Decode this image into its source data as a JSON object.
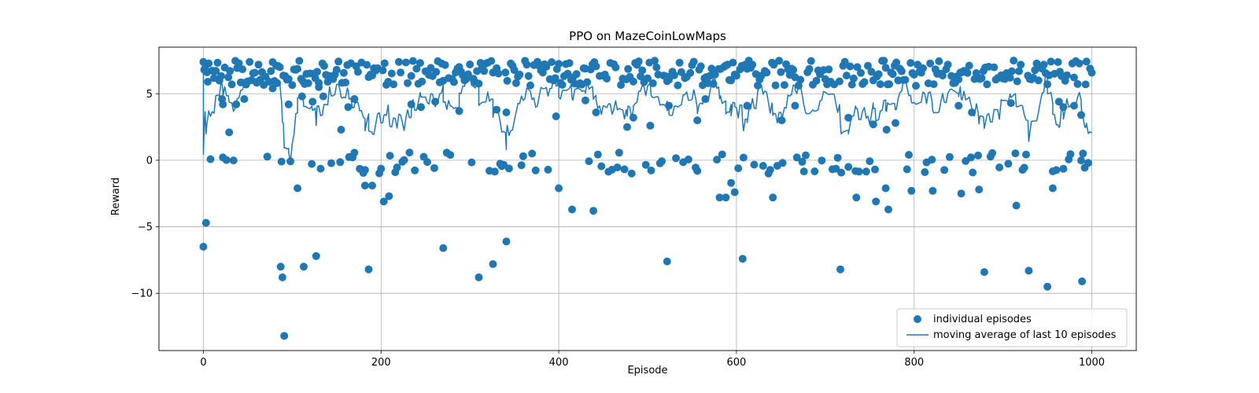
{
  "chart_data": {
    "type": "scatter",
    "title": "PPO on MazeCoinLowMaps",
    "xlabel": "Episode",
    "ylabel": "Reward",
    "xlim": [
      -50,
      1050
    ],
    "ylim": [
      -14.3,
      8.5
    ],
    "xticks": [
      0,
      200,
      400,
      600,
      800,
      1000
    ],
    "yticks": [
      -10,
      -5,
      0,
      5
    ],
    "grid": true,
    "legend_position": "lower-right",
    "colors": {
      "series": "#1f77b4",
      "grid": "#b0b0b0"
    },
    "series": [
      {
        "name": "individual episodes",
        "kind": "scatter"
      },
      {
        "name": "moving average of last 10 episodes",
        "kind": "line"
      }
    ],
    "outliers": [
      {
        "x": 0,
        "y": -6.5
      },
      {
        "x": 3,
        "y": -4.7
      },
      {
        "x": 87,
        "y": -8.0
      },
      {
        "x": 89,
        "y": -8.8
      },
      {
        "x": 91,
        "y": -13.2
      },
      {
        "x": 113,
        "y": -8.0
      },
      {
        "x": 127,
        "y": -7.2
      },
      {
        "x": 186,
        "y": -8.2
      },
      {
        "x": 270,
        "y": -6.6
      },
      {
        "x": 310,
        "y": -8.8
      },
      {
        "x": 326,
        "y": -7.8
      },
      {
        "x": 341,
        "y": -6.1
      },
      {
        "x": 522,
        "y": -7.6
      },
      {
        "x": 607,
        "y": -7.4
      },
      {
        "x": 717,
        "y": -8.2
      },
      {
        "x": 879,
        "y": -8.4
      },
      {
        "x": 929,
        "y": -8.3
      },
      {
        "x": 950,
        "y": -9.5
      },
      {
        "x": 989,
        "y": -9.1
      },
      {
        "x": 203,
        "y": -3.1
      },
      {
        "x": 209,
        "y": -2.7
      },
      {
        "x": 415,
        "y": -3.7
      },
      {
        "x": 439,
        "y": -3.8
      },
      {
        "x": 915,
        "y": -3.4
      },
      {
        "x": 581,
        "y": -2.8
      },
      {
        "x": 588,
        "y": -2.8
      },
      {
        "x": 641,
        "y": -2.8
      },
      {
        "x": 735,
        "y": -2.8
      },
      {
        "x": 757,
        "y": -3.1
      },
      {
        "x": 771,
        "y": -3.7
      },
      {
        "x": 853,
        "y": -2.5
      },
      {
        "x": 106,
        "y": -2.1
      },
      {
        "x": 182,
        "y": -1.9
      },
      {
        "x": 190,
        "y": -1.9
      },
      {
        "x": 400,
        "y": -2.1
      },
      {
        "x": 598,
        "y": -2.4
      },
      {
        "x": 797,
        "y": -2.3
      },
      {
        "x": 821,
        "y": -2.3
      },
      {
        "x": 873,
        "y": -2.2
      },
      {
        "x": 956,
        "y": -2.1
      },
      {
        "x": 768,
        "y": -2.1
      },
      {
        "x": 594,
        "y": -1.7
      },
      {
        "x": 1,
        "y": 6.8
      },
      {
        "x": 5,
        "y": 5.9
      },
      {
        "x": 21,
        "y": 4.6
      },
      {
        "x": 29,
        "y": 2.1
      },
      {
        "x": 22,
        "y": 4.2
      },
      {
        "x": 37,
        "y": 4.2
      },
      {
        "x": 46,
        "y": 4.6
      },
      {
        "x": 78,
        "y": 5.4
      },
      {
        "x": 83,
        "y": 5.8
      },
      {
        "x": 96,
        "y": 4.2
      },
      {
        "x": 111,
        "y": 4.8
      },
      {
        "x": 123,
        "y": 4.4
      },
      {
        "x": 130,
        "y": 5.5
      },
      {
        "x": 135,
        "y": 4.8
      },
      {
        "x": 155,
        "y": 2.3
      },
      {
        "x": 163,
        "y": 4.0
      },
      {
        "x": 170,
        "y": 4.6
      },
      {
        "x": 234,
        "y": 4.2
      },
      {
        "x": 245,
        "y": 4.0
      },
      {
        "x": 261,
        "y": 4.4
      },
      {
        "x": 288,
        "y": 3.7
      },
      {
        "x": 330,
        "y": 3.8
      },
      {
        "x": 341,
        "y": 3.6
      },
      {
        "x": 397,
        "y": 3.3
      },
      {
        "x": 430,
        "y": 4.5
      },
      {
        "x": 442,
        "y": 3.6
      },
      {
        "x": 477,
        "y": 2.5
      },
      {
        "x": 484,
        "y": 3.2
      },
      {
        "x": 503,
        "y": 2.6
      },
      {
        "x": 524,
        "y": 4.1
      },
      {
        "x": 556,
        "y": 3.0
      },
      {
        "x": 565,
        "y": 4.6
      },
      {
        "x": 612,
        "y": 4.1
      },
      {
        "x": 651,
        "y": 3.0
      },
      {
        "x": 666,
        "y": 4.1
      },
      {
        "x": 726,
        "y": 3.2
      },
      {
        "x": 754,
        "y": 2.7
      },
      {
        "x": 769,
        "y": 2.3
      },
      {
        "x": 779,
        "y": 2.8
      },
      {
        "x": 850,
        "y": 4.1
      },
      {
        "x": 865,
        "y": 3.6
      },
      {
        "x": 909,
        "y": 4.3
      },
      {
        "x": 963,
        "y": 4.4
      },
      {
        "x": 968,
        "y": 4.0
      },
      {
        "x": 980,
        "y": 4.1
      },
      {
        "x": 988,
        "y": 3.4
      },
      {
        "x": 993,
        "y": 5.7
      }
    ],
    "scatter_note": "",
    "moving_average_note": ""
  }
}
